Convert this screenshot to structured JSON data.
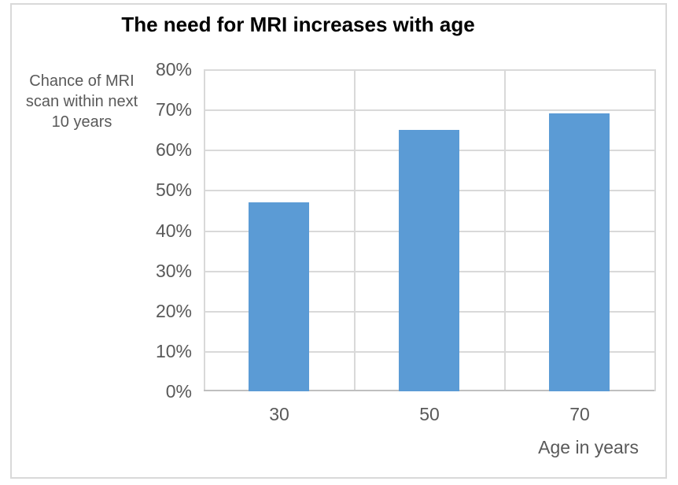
{
  "chart_data": {
    "type": "bar",
    "title": "The need for MRI increases with age",
    "y_axis_title_lines": [
      "Chance of MRI",
      "scan within next",
      "10 years"
    ],
    "xlabel": "Age in years",
    "categories": [
      "30",
      "50",
      "70"
    ],
    "values": [
      47,
      65,
      69
    ],
    "ylim": [
      0,
      80
    ],
    "ytick_step": 10,
    "ytick_labels": [
      "0%",
      "10%",
      "20%",
      "30%",
      "40%",
      "50%",
      "60%",
      "70%",
      "80%"
    ],
    "grid": true,
    "legend": "none",
    "colors": {
      "bar": "#5b9bd5",
      "gridline": "#d9d9d9",
      "axis_line": "#bfbfbf",
      "axis_text": "#595959",
      "title_text": "#000000",
      "frame_border": "#d9d9d9",
      "background": "#ffffff"
    }
  }
}
